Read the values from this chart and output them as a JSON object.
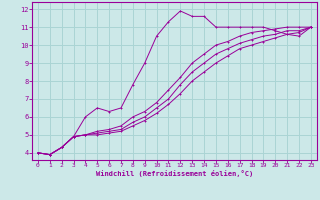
{
  "xlabel": "Windchill (Refroidissement éolien,°C)",
  "bg_color": "#cce8e8",
  "grid_color": "#aad4d4",
  "line_color": "#990099",
  "xlim": [
    -0.5,
    23.5
  ],
  "ylim": [
    3.6,
    12.4
  ],
  "xticks": [
    0,
    1,
    2,
    3,
    4,
    5,
    6,
    7,
    8,
    9,
    10,
    11,
    12,
    13,
    14,
    15,
    16,
    17,
    18,
    19,
    20,
    21,
    22,
    23
  ],
  "yticks": [
    4,
    5,
    6,
    7,
    8,
    9,
    10,
    11,
    12
  ],
  "line1_x": [
    0,
    1,
    2,
    3,
    4,
    5,
    6,
    7,
    8,
    9,
    10,
    11,
    12,
    13,
    14,
    15,
    16,
    17,
    18,
    19,
    20,
    21,
    22,
    23
  ],
  "line1_y": [
    4.0,
    3.9,
    4.3,
    4.9,
    6.0,
    6.5,
    6.3,
    6.5,
    7.8,
    9.0,
    10.5,
    11.3,
    11.9,
    11.6,
    11.6,
    11.0,
    11.0,
    11.0,
    11.0,
    11.0,
    10.8,
    10.6,
    10.5,
    11.0
  ],
  "line2_x": [
    0,
    1,
    2,
    3,
    4,
    5,
    6,
    7,
    8,
    9,
    10,
    11,
    12,
    13,
    14,
    15,
    16,
    17,
    18,
    19,
    20,
    21,
    22,
    23
  ],
  "line2_y": [
    4.0,
    3.9,
    4.3,
    4.9,
    5.0,
    5.2,
    5.3,
    5.5,
    6.0,
    6.3,
    6.8,
    7.5,
    8.2,
    9.0,
    9.5,
    10.0,
    10.2,
    10.5,
    10.7,
    10.8,
    10.9,
    11.0,
    11.0,
    11.0
  ],
  "line3_x": [
    0,
    1,
    2,
    3,
    4,
    5,
    6,
    7,
    8,
    9,
    10,
    11,
    12,
    13,
    14,
    15,
    16,
    17,
    18,
    19,
    20,
    21,
    22,
    23
  ],
  "line3_y": [
    4.0,
    3.9,
    4.3,
    4.9,
    5.0,
    5.1,
    5.2,
    5.3,
    5.7,
    6.0,
    6.5,
    7.0,
    7.8,
    8.5,
    9.0,
    9.5,
    9.8,
    10.1,
    10.3,
    10.5,
    10.6,
    10.8,
    10.8,
    11.0
  ],
  "line4_x": [
    0,
    1,
    2,
    3,
    4,
    5,
    6,
    7,
    8,
    9,
    10,
    11,
    12,
    13,
    14,
    15,
    16,
    17,
    18,
    19,
    20,
    21,
    22,
    23
  ],
  "line4_y": [
    4.0,
    3.9,
    4.3,
    4.9,
    5.0,
    5.0,
    5.1,
    5.2,
    5.5,
    5.8,
    6.2,
    6.7,
    7.3,
    8.0,
    8.5,
    9.0,
    9.4,
    9.8,
    10.0,
    10.2,
    10.4,
    10.6,
    10.7,
    11.0
  ]
}
